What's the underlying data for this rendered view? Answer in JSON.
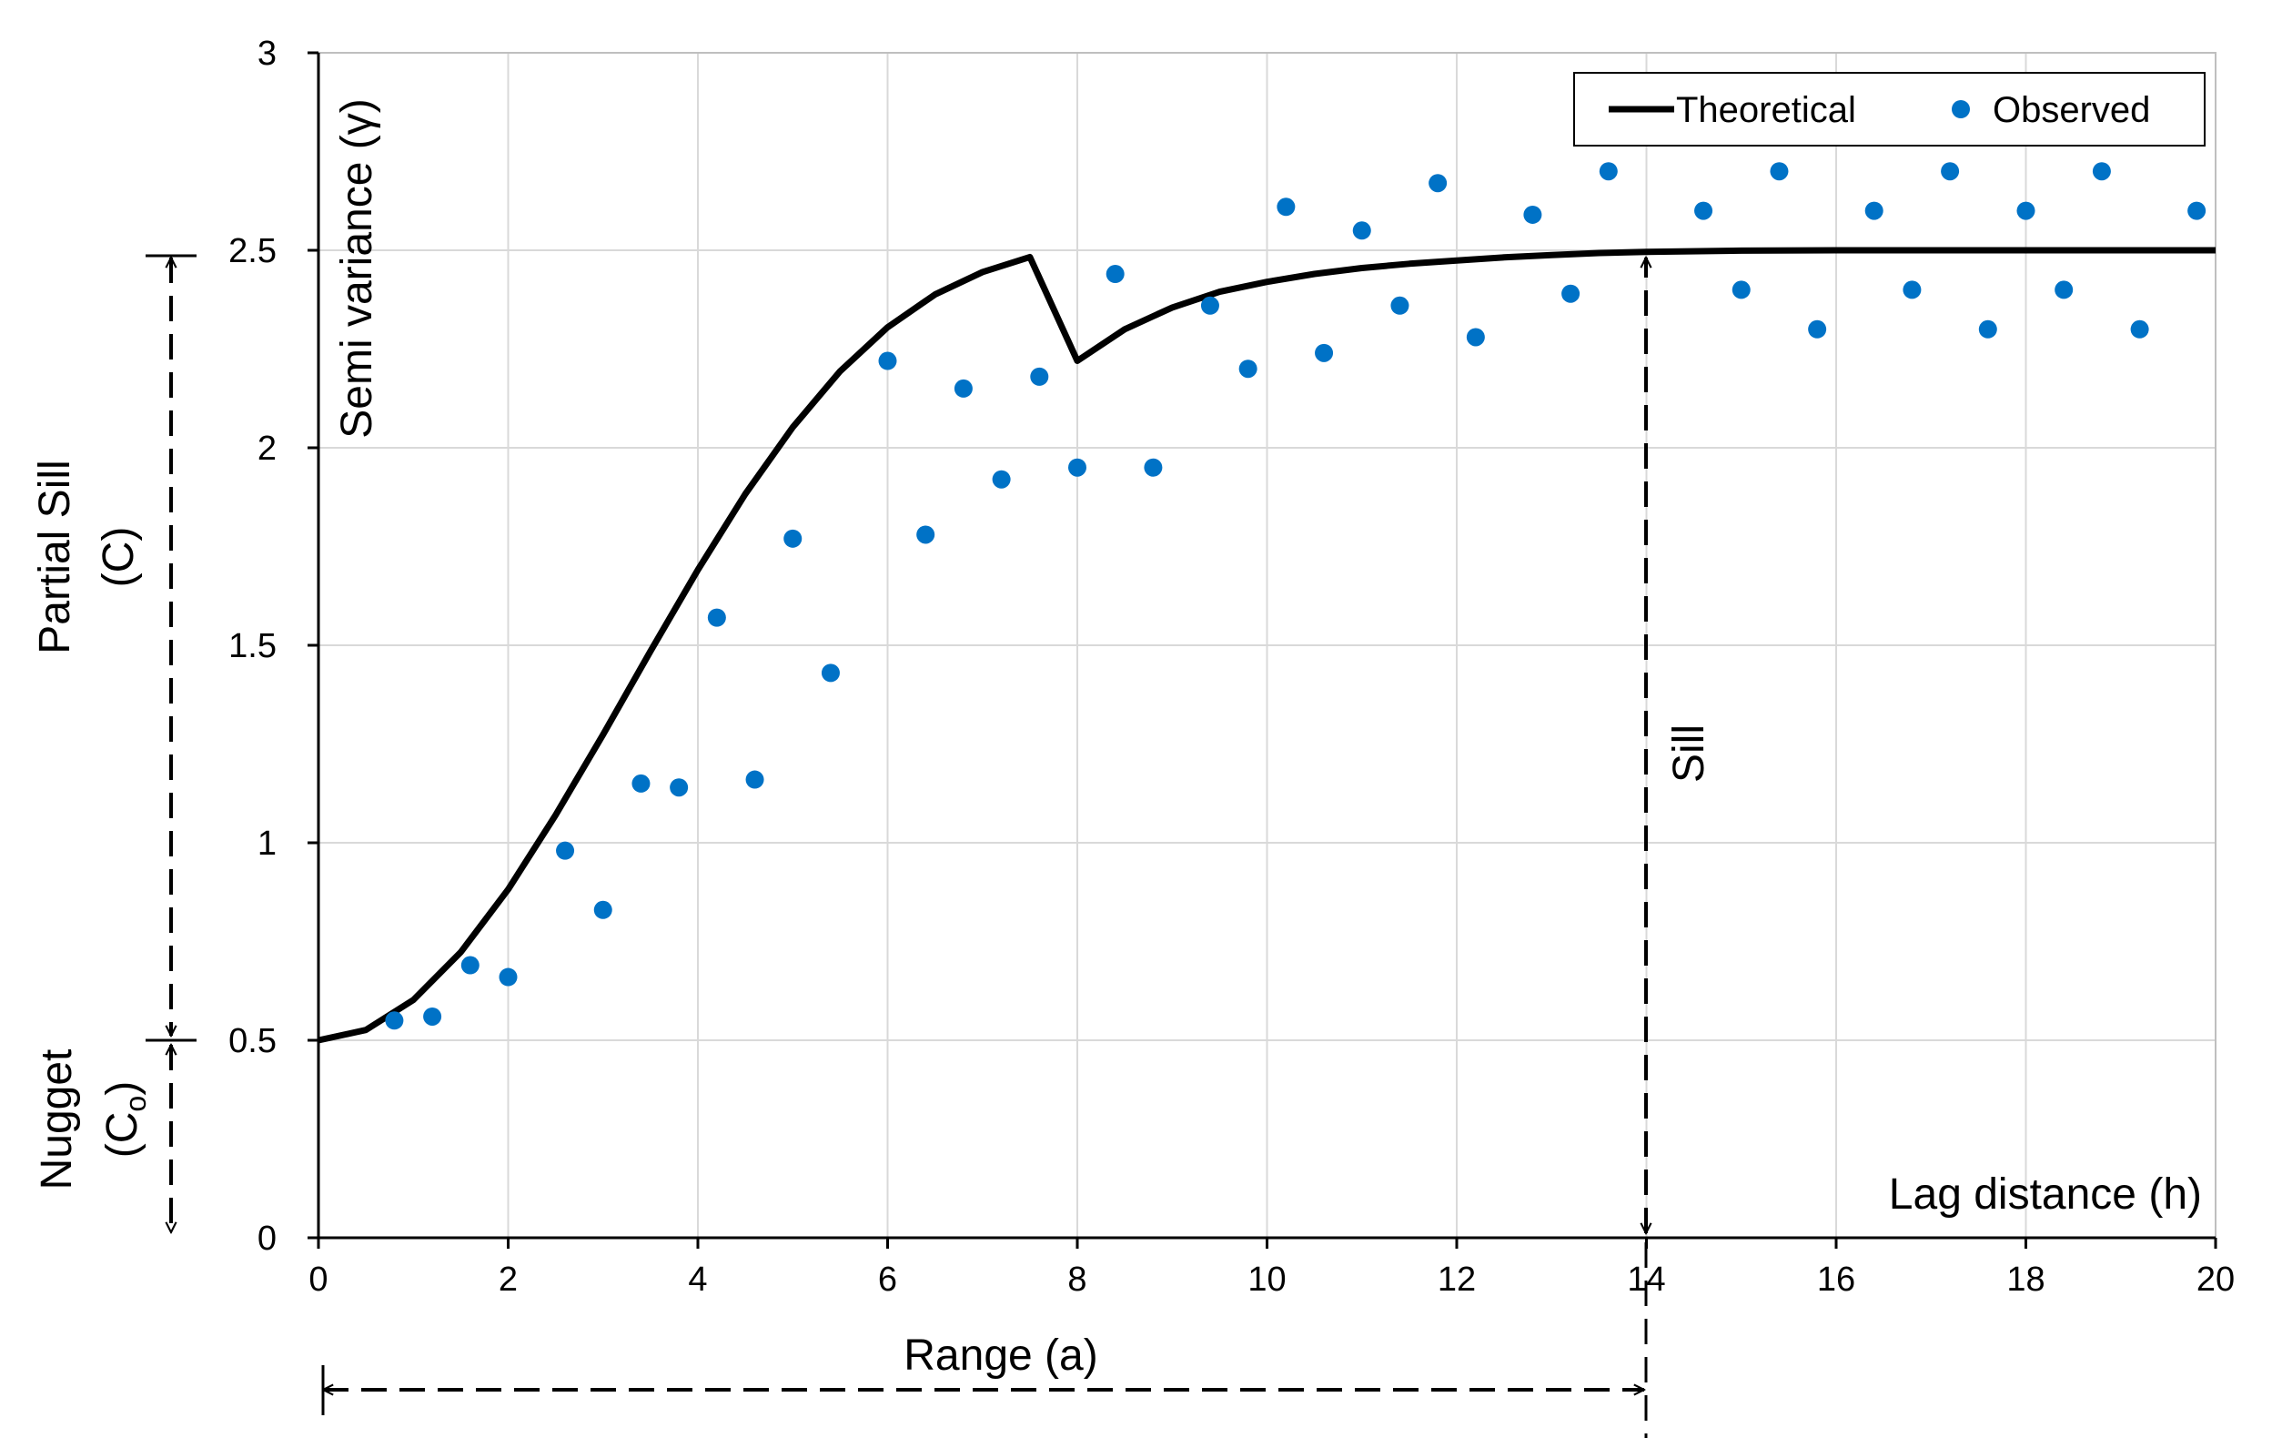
{
  "chart_data": {
    "type": "scatter",
    "title": "",
    "xlabel": "Lag distance (h)",
    "ylabel": "Semi variance (γ)",
    "xlim": [
      0,
      20
    ],
    "ylim": [
      0,
      3
    ],
    "xticks": [
      0,
      2,
      4,
      6,
      8,
      10,
      12,
      14,
      16,
      18,
      20
    ],
    "yticks": [
      0,
      0.5,
      1,
      1.5,
      2,
      2.5,
      3
    ],
    "xtick_labels": [
      "0",
      "2",
      "4",
      "6",
      "8",
      "10",
      "12",
      "14",
      "16",
      "18",
      "20"
    ],
    "ytick_labels": [
      "0",
      "0.5",
      "1",
      "1.5",
      "2",
      "2.5",
      "3"
    ],
    "grid": true,
    "legend_position": "top-right",
    "series": [
      {
        "name": "Theoretical",
        "type": "line",
        "color": "#000000",
        "x": [
          0,
          0.5,
          1,
          1.5,
          2,
          2.5,
          3,
          3.5,
          4,
          4.5,
          5,
          5.5,
          6,
          6.5,
          7,
          7.5,
          8,
          8.5,
          9,
          9.5,
          10,
          10.5,
          11,
          11.5,
          12,
          12.5,
          13,
          13.5,
          14,
          15,
          16,
          17,
          18,
          19,
          20
        ],
        "y": [
          0.5,
          0.526,
          0.602,
          0.723,
          0.882,
          1.07,
          1.274,
          1.485,
          1.691,
          1.883,
          2.052,
          2.194,
          2.305,
          2.388,
          2.445,
          2.483,
          2.22,
          2.3,
          2.355,
          2.395,
          2.42,
          2.44,
          2.455,
          2.466,
          2.474,
          2.482,
          2.488,
          2.493,
          2.496,
          2.499,
          2.5,
          2.5,
          2.5,
          2.5,
          2.5
        ]
      },
      {
        "name": "Observed",
        "type": "scatter",
        "color": "#0072C6",
        "x": [
          0.8,
          1.2,
          1.6,
          2.0,
          2.6,
          3.0,
          3.4,
          3.8,
          4.2,
          4.6,
          5.0,
          5.4,
          6.0,
          6.4,
          6.8,
          7.2,
          7.6,
          8.0,
          8.4,
          8.8,
          9.4,
          9.8,
          10.2,
          10.6,
          11.0,
          11.4,
          11.8,
          12.2,
          12.8,
          13.2,
          13.6,
          14.6,
          15.0,
          15.4,
          15.8,
          16.4,
          16.8,
          17.2,
          17.6,
          18.0,
          18.4,
          18.8,
          19.2,
          19.8
        ],
        "y": [
          0.55,
          0.56,
          0.69,
          0.66,
          0.98,
          0.83,
          1.15,
          1.14,
          1.57,
          1.16,
          1.77,
          1.43,
          2.22,
          1.78,
          2.15,
          1.92,
          2.18,
          1.95,
          2.44,
          1.95,
          2.36,
          2.2,
          2.61,
          2.24,
          2.55,
          2.36,
          2.67,
          2.28,
          2.59,
          2.39,
          2.7,
          2.6,
          2.4,
          2.7,
          2.3,
          2.6,
          2.4,
          2.7,
          2.3,
          2.6,
          2.4,
          2.7,
          2.3,
          2.6
        ]
      }
    ],
    "annotations": {
      "sill": "Sill",
      "range": "Range (a)",
      "partial_sill_line1": "Partial Sill",
      "partial_sill_line2": "(C)",
      "nugget_line1": "Nugget",
      "nugget_line2_main": "(C",
      "nugget_line2_sub": "o",
      "nugget_line2_end": ")"
    },
    "reference_values": {
      "nugget": 0.5,
      "sill": 2.5,
      "range": 14
    }
  }
}
